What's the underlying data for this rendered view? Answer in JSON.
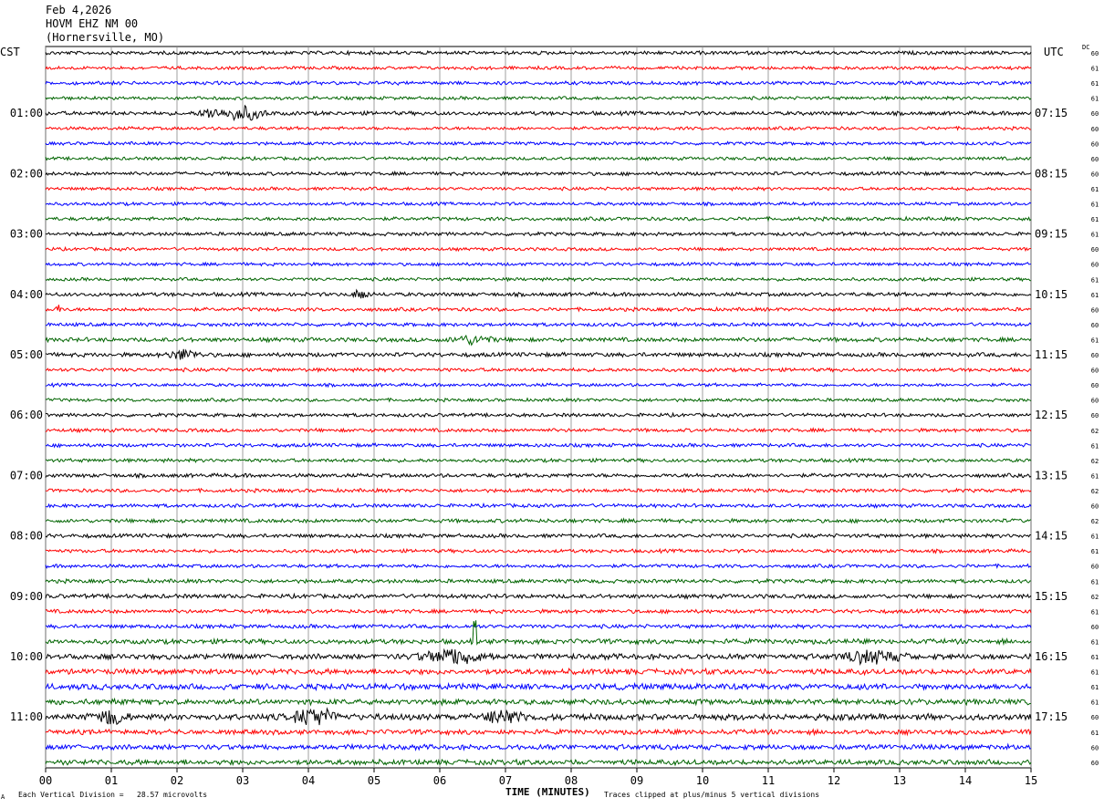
{
  "header": {
    "date": "Feb 4,2026",
    "station": "HOVM EHZ NM 00",
    "location": "(Hornersville, MO)"
  },
  "axis_labels": {
    "left_timezone": "CST",
    "right_timezone": "UTC",
    "dc_label": "DC",
    "xlabel": "TIME (MINUTES)"
  },
  "footer": {
    "scale_note": "Each Vertical Division =   28.57 microvolts",
    "clip_note": "Traces clipped at plus/minus 5 vertical divisions",
    "corner_mark": "A"
  },
  "chart_data": {
    "type": "line",
    "xlim": [
      0,
      15
    ],
    "x_ticks": [
      "00",
      "01",
      "02",
      "03",
      "04",
      "05",
      "06",
      "07",
      "08",
      "09",
      "10",
      "11",
      "12",
      "13",
      "14",
      "15"
    ],
    "rows_per_hour": 4,
    "row_count": 48,
    "left_hour_labels": [
      "01:00",
      "02:00",
      "03:00",
      "04:00",
      "05:00",
      "06:00",
      "07:00",
      "08:00",
      "09:00",
      "10:00",
      "11:00"
    ],
    "right_hour_labels": [
      "07:15",
      "08:15",
      "09:15",
      "10:15",
      "11:15",
      "12:15",
      "13:15",
      "14:15",
      "15:15",
      "16:15",
      "17:15"
    ],
    "first_labeled_row": 4,
    "trace_colors": [
      "#000000",
      "#ff0000",
      "#0000ff",
      "#006400"
    ],
    "dc_values": [
      60,
      61,
      61,
      61,
      60,
      60,
      60,
      60,
      60,
      61,
      61,
      61,
      61,
      60,
      60,
      61,
      61,
      60,
      60,
      61,
      60,
      60,
      60,
      60,
      60,
      62,
      61,
      62,
      61,
      62,
      60,
      62,
      61,
      61,
      60,
      61,
      62,
      61,
      60,
      61,
      61,
      61,
      61,
      61,
      60,
      61,
      60,
      60
    ],
    "noise_levels": [
      2.2,
      2.0,
      2.2,
      2.0,
      2.4,
      2.0,
      2.0,
      2.0,
      2.2,
      2.0,
      2.0,
      2.2,
      2.2,
      2.0,
      2.0,
      2.0,
      2.4,
      2.2,
      2.2,
      2.6,
      2.6,
      2.2,
      2.0,
      2.0,
      2.2,
      2.2,
      2.2,
      2.2,
      2.4,
      2.2,
      2.2,
      2.4,
      2.4,
      2.2,
      2.2,
      2.4,
      2.6,
      2.4,
      2.4,
      3.0,
      3.4,
      3.4,
      3.6,
      3.4,
      3.8,
      3.0,
      3.2,
      3.2
    ],
    "events": [
      {
        "row": 4,
        "minute": 3.0,
        "amplitude": 7,
        "duration": 0.4
      },
      {
        "row": 4,
        "minute": 2.5,
        "amplitude": 5,
        "duration": 0.2
      },
      {
        "row": 16,
        "minute": 4.8,
        "amplitude": 5,
        "duration": 0.15
      },
      {
        "row": 17,
        "minute": 0.2,
        "amplitude": 5,
        "duration": 0.05
      },
      {
        "row": 19,
        "minute": 6.5,
        "amplitude": 4,
        "duration": 0.4
      },
      {
        "row": 20,
        "minute": 2.1,
        "amplitude": 5,
        "duration": 0.3
      },
      {
        "row": 39,
        "minute": 6.53,
        "amplitude": 26,
        "duration": 0.03
      },
      {
        "row": 40,
        "minute": 6.2,
        "amplitude": 7,
        "duration": 0.6
      },
      {
        "row": 40,
        "minute": 12.6,
        "amplitude": 7,
        "duration": 0.5
      },
      {
        "row": 44,
        "minute": 4.1,
        "amplitude": 9,
        "duration": 0.4
      },
      {
        "row": 44,
        "minute": 1.0,
        "amplitude": 7,
        "duration": 0.3
      },
      {
        "row": 44,
        "minute": 7.0,
        "amplitude": 7,
        "duration": 0.4
      }
    ]
  }
}
